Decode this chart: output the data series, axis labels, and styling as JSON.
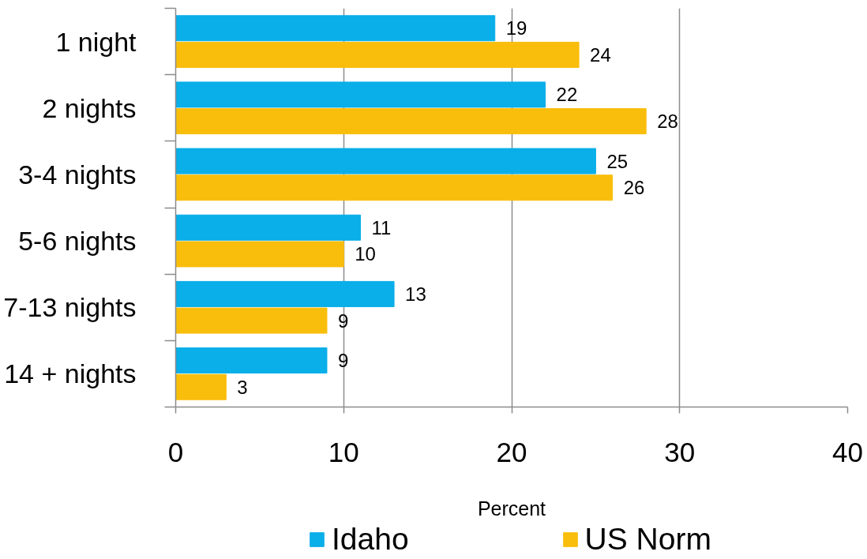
{
  "chart_data": {
    "type": "bar",
    "orientation": "horizontal",
    "categories": [
      "1 night",
      "2 nights",
      "3-4 nights",
      "5-6 nights",
      "7-13 nights",
      "14 + nights"
    ],
    "series": [
      {
        "name": "Idaho",
        "color": "#0aaee8",
        "values": [
          19,
          22,
          25,
          11,
          13,
          9
        ]
      },
      {
        "name": "US Norm",
        "color": "#f9be0c",
        "values": [
          24,
          28,
          26,
          10,
          9,
          3
        ]
      }
    ],
    "xlabel": "Percent",
    "xlim": [
      0,
      40
    ],
    "xticks": [
      0,
      10,
      20,
      30,
      40
    ],
    "grid": "x",
    "legend": "bottom",
    "data_labels": true
  }
}
